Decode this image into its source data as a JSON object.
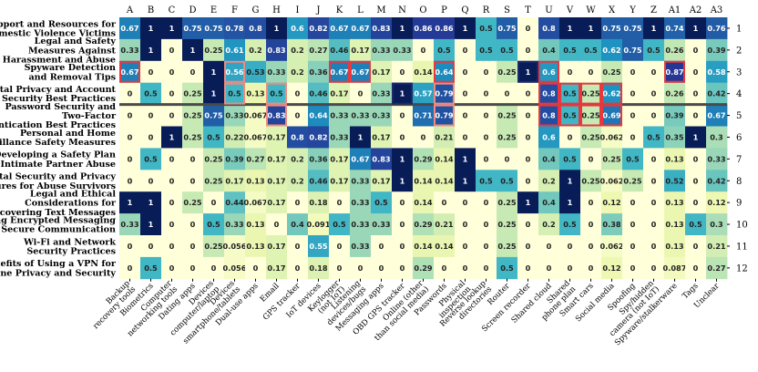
{
  "chart_data": {
    "type": "heatmap",
    "colormap": "YlGnBu",
    "value_range": [
      0,
      1
    ],
    "columns": [
      {
        "letter": "A",
        "label": "Backup recovery tools"
      },
      {
        "letter": "B",
        "label": "Biometrics"
      },
      {
        "letter": "C",
        "label": "Computer networking tools"
      },
      {
        "letter": "D",
        "label": "Dating apps"
      },
      {
        "letter": "E",
        "label": "Devices computer/laptop"
      },
      {
        "letter": "F",
        "label": "Devices smartphone/tablets"
      },
      {
        "letter": "G",
        "label": "Dual-use apps"
      },
      {
        "letter": "H",
        "label": "Email"
      },
      {
        "letter": "I",
        "label": "GPS tracker"
      },
      {
        "letter": "J",
        "label": "IoT devices"
      },
      {
        "letter": "K",
        "label": "Keylogger (not IoT)"
      },
      {
        "letter": "L",
        "label": "Listening devices/bugs"
      },
      {
        "letter": "M",
        "label": "Messaging apps"
      },
      {
        "letter": "N",
        "label": "OBD GPS tracker"
      },
      {
        "letter": "O",
        "label": "Online (other than social media)"
      },
      {
        "letter": "P",
        "label": "Passwords"
      },
      {
        "letter": "Q",
        "label": "Physical inspection"
      },
      {
        "letter": "R",
        "label": "Reverse lookup directories"
      },
      {
        "letter": "S",
        "label": "Router"
      },
      {
        "letter": "T",
        "label": "Screen recorder"
      },
      {
        "letter": "U",
        "label": "Shared cloud"
      },
      {
        "letter": "V",
        "label": "Shared phone plan"
      },
      {
        "letter": "W",
        "label": "Smart cars"
      },
      {
        "letter": "X",
        "label": "Social media"
      },
      {
        "letter": "Y",
        "label": "Spoofing"
      },
      {
        "letter": "Z",
        "label": "Spy/hidden camera (not IoT)"
      },
      {
        "letter": "A1",
        "label": "Spyware/stalkerware"
      },
      {
        "letter": "A2",
        "label": "Tags"
      },
      {
        "letter": "A3",
        "label": "Unclear"
      }
    ],
    "rows": [
      {
        "num": "1",
        "label": "Support and Resources for Domestic Violence Victims",
        "values": [
          "0.67",
          "1",
          "1",
          "0.75",
          "0.75",
          "0.78",
          "0.8",
          "1",
          "0.6",
          "0.82",
          "0.67",
          "0.67",
          "0.83",
          "1",
          "0.86",
          "0.86",
          "1",
          "0.5",
          "0.75",
          "0",
          "0.8",
          "1",
          "1",
          "0.75",
          "0.75",
          "1",
          "0.74",
          "1",
          "0.76"
        ]
      },
      {
        "num": "2",
        "label": "Legal and Safety Measures Against Digital Harassment and Abuse",
        "values": [
          "0.33",
          "1",
          "0",
          "1",
          "0.25",
          "0.61",
          "0.2",
          "0.83",
          "0.2",
          "0.27",
          "0.46",
          "0.17",
          "0.33",
          "0.33",
          "0",
          "0.5",
          "0",
          "0.5",
          "0.5",
          "0",
          "0.4",
          "0.5",
          "0.5",
          "0.62",
          "0.75",
          "0.5",
          "0.26",
          "0",
          "0.39"
        ]
      },
      {
        "num": "3",
        "label": "Spyware Detection and Removal Tips",
        "values": [
          "0.67",
          "0",
          "0",
          "0",
          "1",
          "0.56",
          "0.53",
          "0.33",
          "0.2",
          "0.36",
          "0.67",
          "0.67",
          "0.17",
          "0",
          "0.14",
          "0.64",
          "0",
          "0",
          "0.25",
          "1",
          "0.6",
          "0",
          "0",
          "0.25",
          "0",
          "0",
          "0.87",
          "0",
          "0.58"
        ]
      },
      {
        "num": "4",
        "label": "Digital Privacy and Account Security Best Practices",
        "values": [
          "0",
          "0.5",
          "0",
          "0.25",
          "1",
          "0.5",
          "0.13",
          "0.5",
          "0",
          "0.46",
          "0.17",
          "0",
          "0.33",
          "1",
          "0.57",
          "0.79",
          "0",
          "0",
          "0",
          "0",
          "0.8",
          "0.5",
          "0.25",
          "0.62",
          "0",
          "0",
          "0.26",
          "0",
          "0.42"
        ]
      },
      {
        "num": "5",
        "label": "Password Security and Two-Factor Authentication Best Practices",
        "values": [
          "0",
          "0",
          "0",
          "0.25",
          "0.75",
          "0.33",
          "0.067",
          "0.83",
          "0",
          "0.64",
          "0.33",
          "0.33",
          "0.33",
          "0",
          "0.71",
          "0.79",
          "0",
          "0",
          "0.25",
          "0",
          "0.8",
          "0.5",
          "0.25",
          "0.69",
          "0",
          "0",
          "0.39",
          "0",
          "0.67"
        ]
      },
      {
        "num": "6",
        "label": "Personal and Home Surveillance Safety Measures",
        "values": [
          "0",
          "0",
          "1",
          "0.25",
          "0.5",
          "0.22",
          "0.067",
          "0.17",
          "0.8",
          "0.82",
          "0.33",
          "1",
          "0.17",
          "0",
          "0",
          "0.21",
          "0",
          "0",
          "0.25",
          "0",
          "0.6",
          "0",
          "0.25",
          "0.062",
          "0",
          "0.5",
          "0.35",
          "1",
          "0.3"
        ]
      },
      {
        "num": "7",
        "label": "Developing a Safety Plan for Intimate Partner Abuse",
        "values": [
          "0",
          "0.5",
          "0",
          "0",
          "0.25",
          "0.39",
          "0.27",
          "0.17",
          "0.2",
          "0.36",
          "0.17",
          "0.67",
          "0.83",
          "1",
          "0.29",
          "0.14",
          "1",
          "0",
          "0",
          "0",
          "0.4",
          "0.5",
          "0",
          "0.25",
          "0.5",
          "0",
          "0.13",
          "0",
          "0.33"
        ]
      },
      {
        "num": "8",
        "label": "Digital Security and Privacy Measures for Abuse Survivors",
        "values": [
          "0",
          "0",
          "0",
          "0",
          "0.25",
          "0.17",
          "0.13",
          "0.17",
          "0.2",
          "0.46",
          "0.17",
          "0.33",
          "0.17",
          "1",
          "0.14",
          "0.14",
          "1",
          "0.5",
          "0.5",
          "0",
          "0.2",
          "1",
          "0.25",
          "0.062",
          "0.25",
          "0",
          "0.52",
          "0",
          "0.42"
        ]
      },
      {
        "num": "9",
        "label": "Legal and Ethical Considerations for Accessing and Recovering Text Messages",
        "values": [
          "1",
          "1",
          "0",
          "0.25",
          "0",
          "0.44",
          "0.067",
          "0.17",
          "0",
          "0.18",
          "0",
          "0.33",
          "0.5",
          "0",
          "0.14",
          "0",
          "0",
          "0",
          "0.25",
          "1",
          "0.4",
          "1",
          "0",
          "0.12",
          "0",
          "0",
          "0.13",
          "0",
          "0.12"
        ]
      },
      {
        "num": "10",
        "label": "Using Encrypted Messaging Apps for Secure Communication",
        "values": [
          "0.33",
          "1",
          "0",
          "0",
          "0.5",
          "0.33",
          "0.13",
          "0",
          "0.4",
          "0.091",
          "0.5",
          "0.33",
          "0.33",
          "0",
          "0.29",
          "0.21",
          "0",
          "0",
          "0.25",
          "0",
          "0.2",
          "0.5",
          "0",
          "0.38",
          "0",
          "0",
          "0.13",
          "0.5",
          "0.3"
        ]
      },
      {
        "num": "11",
        "label": "Wi-Fi and Network Security Practices",
        "values": [
          "0",
          "0",
          "0",
          "0",
          "0.25",
          "0.056",
          "0.13",
          "0.17",
          "0",
          "0.55",
          "0",
          "0.33",
          "0",
          "0",
          "0.14",
          "0.14",
          "0",
          "0",
          "0.25",
          "0",
          "0",
          "0",
          "0",
          "0.062",
          "0",
          "0",
          "0.13",
          "0",
          "0.21"
        ]
      },
      {
        "num": "12",
        "label": "Benefits of Using a VPN for Online Privacy and Security",
        "values": [
          "0",
          "0.5",
          "0",
          "0",
          "0",
          "0.056",
          "0",
          "0.17",
          "0",
          "0.18",
          "0",
          "0",
          "0",
          "0",
          "0.29",
          "0",
          "0",
          "0",
          "0.5",
          "0",
          "0",
          "0",
          "0",
          "0.12",
          "0",
          "0",
          "0.087",
          "0",
          "0.27"
        ]
      }
    ],
    "highlights": [
      {
        "row": 2,
        "col": 0,
        "color": "red"
      },
      {
        "row": 2,
        "col": 10,
        "color": "red"
      },
      {
        "row": 2,
        "col": 11,
        "color": "red"
      },
      {
        "row": 2,
        "col": 15,
        "color": "red"
      },
      {
        "row": 2,
        "col": 19,
        "color": "navy"
      },
      {
        "row": 2,
        "col": 20,
        "color": "red"
      },
      {
        "row": 2,
        "col": 26,
        "color": "red"
      },
      {
        "row": 2,
        "col": 5,
        "color": "salmon"
      },
      {
        "row": 3,
        "col": 5,
        "color": "salmon"
      },
      {
        "row": 3,
        "col": 7,
        "color": "salmon"
      },
      {
        "row": 4,
        "col": 7,
        "color": "salmon"
      },
      {
        "row": 3,
        "col": 15,
        "color": "salmon"
      },
      {
        "row": 4,
        "col": 15,
        "color": "salmon"
      },
      {
        "row": 3,
        "col": 13,
        "color": "navy"
      },
      {
        "row": 3,
        "col": 20,
        "color": "red"
      },
      {
        "row": 4,
        "col": 20,
        "color": "red"
      },
      {
        "row": 3,
        "col": 21,
        "color": "red"
      },
      {
        "row": 4,
        "col": 21,
        "color": "red"
      },
      {
        "row": 3,
        "col": 22,
        "color": "red"
      },
      {
        "row": 4,
        "col": 22,
        "color": "red"
      },
      {
        "row": 3,
        "col": 23,
        "color": "red"
      },
      {
        "row": 4,
        "col": 23,
        "color": "red"
      }
    ],
    "separator_rows": [
      4
    ],
    "title": "",
    "xlabel": "",
    "ylabel": ""
  }
}
